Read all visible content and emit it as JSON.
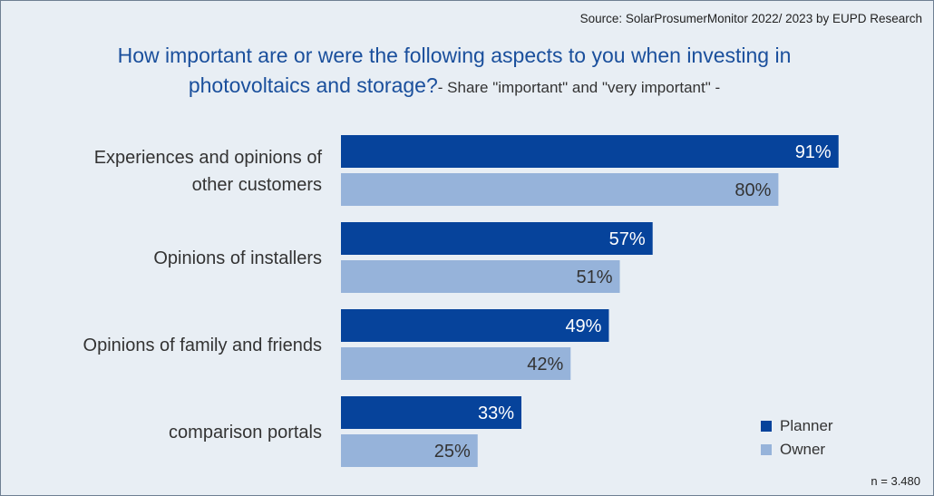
{
  "source": "Source: SolarProsumerMonitor 2022/ 2023 by EUPD Research",
  "note": "n = 3.480",
  "colors": {
    "planner": "#06439b",
    "owner": "#96b3da",
    "planner_text": "#ffffff",
    "owner_text": "#333333"
  },
  "chart_data": {
    "type": "bar",
    "orientation": "horizontal",
    "title": "How important are or were the following aspects to you when investing in photovoltaics and storage?",
    "subtitle": "- Share \"important\" and \"very important\" -",
    "categories": [
      [
        "Experiences and opinions of",
        "other customers"
      ],
      [
        "Opinions of installers"
      ],
      [
        "Opinions of family and friends"
      ],
      [
        "comparison portals"
      ]
    ],
    "series": [
      {
        "name": "Planner",
        "values": [
          91,
          57,
          49,
          33
        ],
        "labels": [
          "91%",
          "57%",
          "49%",
          "33%"
        ]
      },
      {
        "name": "Owner",
        "values": [
          80,
          51,
          42,
          25
        ],
        "labels": [
          "80%",
          "51%",
          "42%",
          "25%"
        ]
      }
    ],
    "unit": "%",
    "xlim": [
      0,
      100
    ],
    "legend": "bottom-right",
    "grid": false
  }
}
